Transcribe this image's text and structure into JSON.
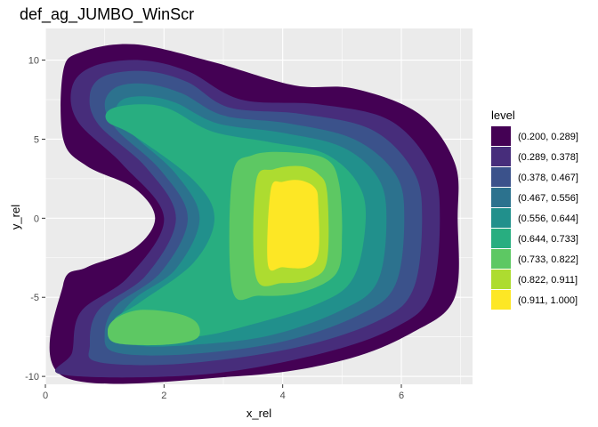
{
  "chart_data": {
    "type": "contour",
    "title": "def_ag_JUMBO_WinScr",
    "xlabel": "x_rel",
    "ylabel": "y_rel",
    "xlim": [
      0,
      7.2
    ],
    "ylim": [
      -10.5,
      12
    ],
    "x_ticks": [
      0,
      2,
      4,
      6
    ],
    "y_ticks": [
      -10,
      -5,
      0,
      5,
      10
    ],
    "x_tick_labels": [
      "0",
      "2",
      "4",
      "6"
    ],
    "y_tick_labels": [
      "-10",
      "-5",
      "0",
      "5",
      "10"
    ],
    "grid": true,
    "panel_background": "#ebebeb",
    "legend": {
      "title": "level",
      "placement": "right",
      "entries": [
        {
          "label": "(0.200, 0.289]",
          "color": "#440154"
        },
        {
          "label": "(0.289, 0.378]",
          "color": "#472d7b"
        },
        {
          "label": "(0.378, 0.467]",
          "color": "#3b528b"
        },
        {
          "label": "(0.467, 0.556]",
          "color": "#2c728e"
        },
        {
          "label": "(0.556, 0.644]",
          "color": "#21908c"
        },
        {
          "label": "(0.644, 0.733]",
          "color": "#28ae80"
        },
        {
          "label": "(0.733, 0.822]",
          "color": "#5dc863"
        },
        {
          "label": "(0.822, 0.911]",
          "color": "#addc30"
        },
        {
          "label": "(0.911, 1.000]",
          "color": "#fde725"
        }
      ]
    },
    "bands": [
      {
        "level": "(0.200, 0.289]",
        "color": "#440154",
        "outline": [
          [
            0.3,
            -10
          ],
          [
            3.2,
            -10
          ],
          [
            5.0,
            -9.0
          ],
          [
            6.2,
            -7.2
          ],
          [
            6.9,
            -5.0
          ],
          [
            6.95,
            0
          ],
          [
            6.9,
            3.5
          ],
          [
            6.3,
            6.6
          ],
          [
            5.2,
            8.2
          ],
          [
            4.2,
            8.4
          ],
          [
            2.8,
            9.9
          ],
          [
            1.5,
            11.0
          ],
          [
            0.6,
            10.5
          ],
          [
            0.3,
            9.3
          ],
          [
            0.3,
            5.0
          ],
          [
            0.7,
            3.3
          ],
          [
            1.5,
            1.9
          ],
          [
            1.85,
            0
          ],
          [
            1.5,
            -1.9
          ],
          [
            0.7,
            -3.1
          ],
          [
            0.3,
            -4.2
          ]
        ]
      },
      {
        "level": "(0.289, 0.378]",
        "color": "#472d7b",
        "outline": [
          [
            0.3,
            -9.9
          ],
          [
            2.6,
            -9.9
          ],
          [
            4.6,
            -8.6
          ],
          [
            5.9,
            -6.9
          ],
          [
            6.5,
            -4.8
          ],
          [
            6.65,
            0
          ],
          [
            6.5,
            3.3
          ],
          [
            5.8,
            6.2
          ],
          [
            4.6,
            7.2
          ],
          [
            3.3,
            7.5
          ],
          [
            2.4,
            9.3
          ],
          [
            1.6,
            10.0
          ],
          [
            0.8,
            9.6
          ],
          [
            0.45,
            8.3
          ],
          [
            0.55,
            6.1
          ],
          [
            1.3,
            3.4
          ],
          [
            2.0,
            0
          ],
          [
            1.4,
            -3.7
          ],
          [
            0.6,
            -5.9
          ],
          [
            0.45,
            -8.5
          ]
        ]
      },
      {
        "level": "(0.378, 0.467]",
        "color": "#3b528b",
        "outline": [
          [
            0.9,
            -9.1
          ],
          [
            2.3,
            -9.2
          ],
          [
            4.2,
            -8.2
          ],
          [
            5.6,
            -6.5
          ],
          [
            6.2,
            -4.5
          ],
          [
            6.35,
            0
          ],
          [
            6.2,
            3.0
          ],
          [
            5.5,
            5.6
          ],
          [
            4.3,
            6.6
          ],
          [
            3.1,
            7.0
          ],
          [
            2.4,
            8.6
          ],
          [
            1.7,
            9.3
          ],
          [
            1.0,
            9.0
          ],
          [
            0.75,
            7.8
          ],
          [
            0.9,
            5.9
          ],
          [
            1.7,
            3.2
          ],
          [
            2.2,
            0
          ],
          [
            1.7,
            -3.6
          ],
          [
            0.9,
            -5.8
          ],
          [
            0.75,
            -8.0
          ]
        ]
      },
      {
        "level": "(0.467, 0.556]",
        "color": "#2c728e",
        "outline": [
          [
            1.2,
            -8.5
          ],
          [
            2.4,
            -8.6
          ],
          [
            4.0,
            -7.8
          ],
          [
            5.3,
            -6.1
          ],
          [
            5.9,
            -4.2
          ],
          [
            6.05,
            0
          ],
          [
            5.9,
            2.8
          ],
          [
            5.2,
            5.0
          ],
          [
            4.1,
            6.0
          ],
          [
            3.0,
            6.5
          ],
          [
            2.3,
            7.9
          ],
          [
            1.7,
            8.5
          ],
          [
            1.2,
            8.3
          ],
          [
            1.0,
            7.2
          ],
          [
            1.2,
            5.6
          ],
          [
            1.95,
            3.0
          ],
          [
            2.4,
            0
          ],
          [
            1.95,
            -3.4
          ],
          [
            1.2,
            -5.5
          ],
          [
            1.0,
            -7.3
          ]
        ]
      },
      {
        "level": "(0.556, 0.644]",
        "color": "#21908c",
        "outline": [
          [
            1.5,
            -8.0
          ],
          [
            2.5,
            -8.0
          ],
          [
            3.8,
            -7.4
          ],
          [
            5.0,
            -5.8
          ],
          [
            5.6,
            -4.0
          ],
          [
            5.75,
            0
          ],
          [
            5.6,
            2.6
          ],
          [
            5.0,
            4.5
          ],
          [
            4.0,
            5.4
          ],
          [
            2.9,
            6.0
          ],
          [
            2.2,
            7.3
          ],
          [
            1.7,
            7.7
          ],
          [
            1.3,
            7.5
          ],
          [
            1.2,
            6.6
          ],
          [
            1.5,
            5.2
          ],
          [
            2.2,
            2.8
          ],
          [
            2.6,
            0
          ],
          [
            2.2,
            -3.2
          ],
          [
            1.5,
            -5.1
          ],
          [
            1.2,
            -6.8
          ]
        ]
      },
      {
        "level": "(0.644, 0.733]",
        "color": "#28ae80",
        "outline": [
          [
            1.5,
            -7.6
          ],
          [
            2.5,
            -7.5
          ],
          [
            3.3,
            -6.9
          ],
          [
            4.6,
            -5.4
          ],
          [
            5.2,
            -3.7
          ],
          [
            5.4,
            0
          ],
          [
            5.25,
            2.3
          ],
          [
            4.7,
            4.1
          ],
          [
            3.8,
            4.8
          ],
          [
            2.8,
            5.5
          ],
          [
            2.1,
            6.9
          ],
          [
            1.6,
            7.2
          ],
          [
            1.1,
            6.9
          ],
          [
            1.05,
            6.1
          ],
          [
            1.5,
            5.2
          ],
          [
            2.5,
            2.4
          ],
          [
            2.85,
            0
          ],
          [
            2.5,
            -2.8
          ],
          [
            1.6,
            -5.3
          ],
          [
            1.15,
            -6.5
          ]
        ]
      },
      {
        "level": "(0.733, 0.822]",
        "color": "#5dc863",
        "outline": [
          [
            3.15,
            -4.5
          ],
          [
            3.15,
            2.6
          ],
          [
            3.5,
            4.0
          ],
          [
            4.2,
            4.15
          ],
          [
            4.75,
            3.7
          ],
          [
            4.95,
            2.2
          ],
          [
            5.0,
            -1.0
          ],
          [
            4.9,
            -3.5
          ],
          [
            4.3,
            -4.7
          ],
          [
            3.6,
            -4.9
          ]
        ]
      },
      {
        "level": "(0.733, 0.822]",
        "color": "#5dc863",
        "outline": [
          [
            1.2,
            -7.9
          ],
          [
            2.0,
            -8.0
          ],
          [
            2.55,
            -7.6
          ],
          [
            2.55,
            -6.6
          ],
          [
            2.2,
            -6.0
          ],
          [
            1.6,
            -5.8
          ],
          [
            1.2,
            -6.3
          ],
          [
            1.05,
            -7.1
          ]
        ]
      },
      {
        "level": "(0.822, 0.911]",
        "color": "#addc30",
        "outline": [
          [
            3.55,
            -3.7
          ],
          [
            3.55,
            2.3
          ],
          [
            3.85,
            3.1
          ],
          [
            4.3,
            3.3
          ],
          [
            4.6,
            2.8
          ],
          [
            4.75,
            1.6
          ],
          [
            4.75,
            -2.6
          ],
          [
            4.5,
            -3.8
          ],
          [
            4.0,
            -4.1
          ]
        ]
      },
      {
        "level": "(0.911, 1.000]",
        "color": "#fde725",
        "outline": [
          [
            3.75,
            -2.9
          ],
          [
            3.8,
            1.8
          ],
          [
            4.0,
            2.3
          ],
          [
            4.3,
            2.4
          ],
          [
            4.55,
            1.9
          ],
          [
            4.6,
            0.8
          ],
          [
            4.6,
            -2.2
          ],
          [
            4.4,
            -3.1
          ],
          [
            4.0,
            -3.1
          ]
        ]
      }
    ]
  }
}
